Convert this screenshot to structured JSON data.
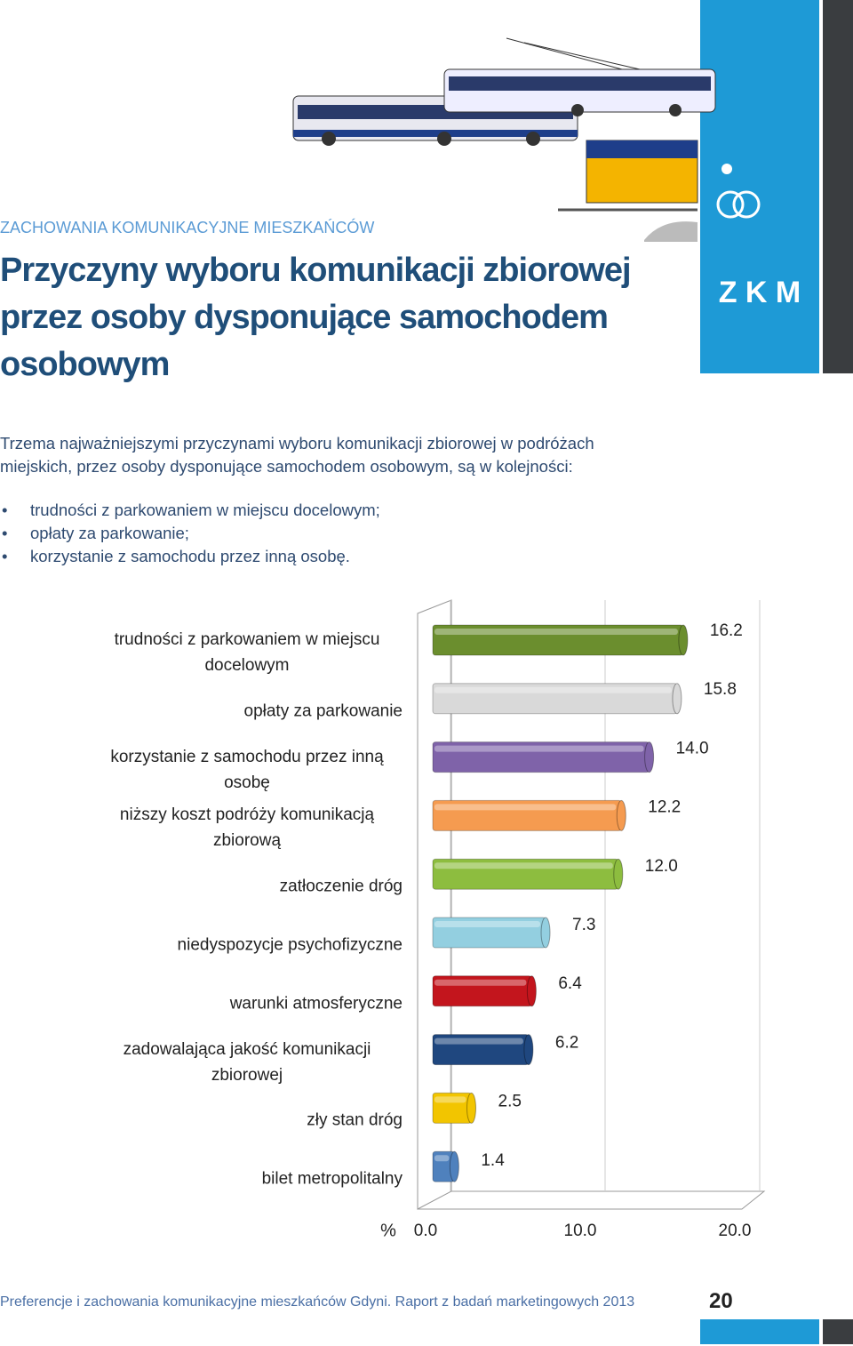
{
  "header": {
    "section": "ZACHOWANIA KOMUNIKACYJNE MIESZKAŃCÓW",
    "title": "Przyczyny wyboru komunikacji zbiorowej przez osoby dysponujące samochodem osobowym",
    "logo": "Z K M"
  },
  "body": {
    "intro": "Trzema najważniejszymi przyczynami wyboru komunikacji zbiorowej w podróżach miejskich, przez osoby dysponujące samochodem osobowym, są w kolejności:",
    "bullets": [
      "trudności z parkowaniem w miejscu docelowym;",
      "opłaty za parkowanie;",
      "korzystanie z samochodu przez inną osobę."
    ]
  },
  "chart_data": {
    "type": "bar",
    "orientation": "horizontal",
    "x_label": "%",
    "categories": [
      "trudności z parkowaniem w miejscu docelowym",
      "opłaty za parkowanie",
      "korzystanie z samochodu przez inną osobę",
      "niższy koszt podróży komunikacją zbiorową",
      "zatłoczenie dróg",
      "niedyspozycje psychofizyczne",
      "warunki atmosferyczne",
      "zadowalająca jakość komunikacji zbiorowej",
      "zły stan dróg",
      "bilet metropolitalny"
    ],
    "values": [
      16.2,
      15.8,
      14.0,
      12.2,
      12.0,
      7.3,
      6.4,
      6.2,
      2.5,
      1.4
    ],
    "value_labels": [
      "16.2",
      "15.8",
      "14.0",
      "12.2",
      "12.0",
      "7.3",
      "6.4",
      "6.2",
      "2.5",
      "1.4"
    ],
    "colors": [
      "#6b8e2e",
      "#d9d9d9",
      "#7f63a9",
      "#f59b50",
      "#8dbd3f",
      "#93cfe0",
      "#c3151d",
      "#1f477f",
      "#f2c500",
      "#4f81bd"
    ],
    "xlim": [
      0,
      20
    ],
    "xticks": [
      {
        "value": 0,
        "label": "0.0"
      },
      {
        "value": 10,
        "label": "10.0"
      },
      {
        "value": 20,
        "label": "20.0"
      }
    ],
    "grid": true
  },
  "footer": {
    "text": "Preferencje i zachowania komunikacyjne mieszkańców Gdyni. Raport z badań marketingowych 2013",
    "page": "20"
  }
}
